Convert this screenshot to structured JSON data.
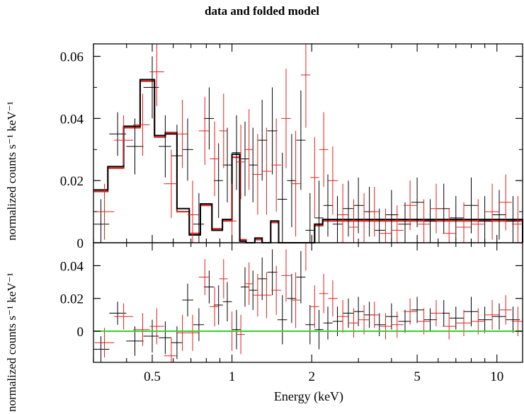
{
  "title": "data and folded model",
  "chart_data": [
    {
      "type": "line",
      "panel": "top",
      "title": "data and folded model",
      "xlabel": "Energy (keV)",
      "ylabel": "normalized counts s⁻¹ keV⁻¹",
      "xscale": "log",
      "xlim": [
        0.3,
        12.5
      ],
      "ylim": [
        0,
        0.064
      ],
      "yticks": [
        0,
        0.02,
        0.04,
        0.06
      ],
      "ytick_labels": [
        "0",
        "0.02",
        "0.04",
        "0.06"
      ],
      "grid": false,
      "legend": "none",
      "series": [
        {
          "color": "#000000",
          "x": [
            0.32,
            0.37,
            0.43,
            0.5,
            0.56,
            0.62,
            0.68,
            0.75,
            0.82,
            0.89,
            0.96,
            1.04,
            1.12,
            1.2,
            1.3,
            1.42,
            1.55,
            1.68,
            1.82,
            1.97,
            2.13,
            2.3,
            2.5,
            2.75,
            3.0,
            3.3,
            3.6,
            4.0,
            4.5,
            5.0,
            5.6,
            6.3,
            7.0,
            8.0,
            9.0,
            10.2,
            11.5
          ],
          "y": [
            0.006,
            0.035,
            0.031,
            0.05,
            0.031,
            0.028,
            0.03,
            0.006,
            0.04,
            0.02,
            0.025,
            0.029,
            0.027,
            0.025,
            0.033,
            0.036,
            0.014,
            0.02,
            0.033,
            0.004,
            0.008,
            0.012,
            0.006,
            0.011,
            0.012,
            0.01,
            0.004,
            0.009,
            0.006,
            0.013,
            0.007,
            0.011,
            0.008,
            0.012,
            0.007,
            0.009,
            0.007
          ],
          "yerr": [
            0.008,
            0.007,
            0.009,
            0.01,
            0.01,
            0.01,
            0.01,
            0.01,
            0.01,
            0.012,
            0.012,
            0.012,
            0.012,
            0.012,
            0.013,
            0.014,
            0.015,
            0.015,
            0.016,
            0.012,
            0.012,
            0.01,
            0.009,
            0.009,
            0.009,
            0.008,
            0.007,
            0.008,
            0.007,
            0.008,
            0.007,
            0.008,
            0.007,
            0.009,
            0.008,
            0.008,
            0.008
          ]
        },
        {
          "color": "#e0201c",
          "x": [
            0.33,
            0.39,
            0.46,
            0.52,
            0.59,
            0.65,
            0.71,
            0.79,
            0.86,
            0.93,
            1.0,
            1.08,
            1.16,
            1.25,
            1.35,
            1.47,
            1.6,
            1.74,
            1.9,
            2.05,
            2.22,
            2.4,
            2.62,
            2.88,
            3.15,
            3.45,
            3.8,
            4.2,
            4.7,
            5.3,
            5.9,
            6.6,
            7.5,
            8.5,
            9.6,
            10.8,
            12.0
          ],
          "y": [
            0.01,
            0.033,
            0.038,
            0.055,
            0.019,
            0.035,
            0.009,
            0.036,
            0.027,
            0.036,
            0.007,
            0.026,
            0.03,
            0.022,
            0.023,
            0.025,
            0.04,
            0.019,
            0.054,
            0.021,
            0.03,
            0.02,
            0.009,
            0.005,
            0.007,
            0.01,
            0.003,
            0.004,
            0.012,
            0.006,
            0.011,
            0.003,
            0.005,
            0.006,
            0.01,
            0.013,
            0.006
          ],
          "yerr": [
            0.009,
            0.008,
            0.01,
            0.011,
            0.011,
            0.011,
            0.011,
            0.011,
            0.012,
            0.012,
            0.012,
            0.012,
            0.013,
            0.013,
            0.014,
            0.015,
            0.016,
            0.017,
            0.017,
            0.013,
            0.012,
            0.011,
            0.01,
            0.009,
            0.009,
            0.008,
            0.008,
            0.008,
            0.008,
            0.008,
            0.008,
            0.008,
            0.008,
            0.008,
            0.009,
            0.009,
            0.009
          ]
        }
      ],
      "model": {
        "edges": [
          0.3,
          0.34,
          0.39,
          0.45,
          0.51,
          0.56,
          0.62,
          0.69,
          0.76,
          0.84,
          0.92,
          1.0,
          1.07,
          1.13,
          1.22,
          1.3,
          1.4,
          1.5,
          1.63,
          1.76,
          1.9,
          2.05,
          2.2,
          12.5
        ],
        "black": [
          0.017,
          0.0245,
          0.0375,
          0.0525,
          0.0345,
          0.035,
          0.011,
          0.0025,
          0.0125,
          0.004,
          0.0075,
          0.0285,
          0.0005,
          0.0,
          0.0015,
          0.0,
          0.007,
          0.0,
          0.0,
          0.0,
          0.0,
          0.006,
          0.0075,
          0.0
        ],
        "red": [
          0.0165,
          0.024,
          0.037,
          0.052,
          0.034,
          0.0355,
          0.01,
          0.003,
          0.012,
          0.0045,
          0.007,
          0.0275,
          0.001,
          0.0,
          0.001,
          0.0,
          0.0065,
          0.0,
          0.0,
          0.0,
          0.0,
          0.0055,
          0.007,
          0.0
        ]
      }
    },
    {
      "type": "line",
      "panel": "bottom",
      "xlabel": "Energy (keV)",
      "ylabel": "normalized counts s⁻¹ keV⁻¹",
      "xscale": "log",
      "xlim": [
        0.3,
        12.5
      ],
      "ylim": [
        -0.019,
        0.054
      ],
      "yticks": [
        0,
        0.02,
        0.04
      ],
      "ytick_labels": [
        "0",
        "0.02",
        "0.04"
      ],
      "xticks": [
        0.5,
        1,
        2,
        5,
        10
      ],
      "xtick_labels": [
        "0.5",
        "1",
        "2",
        "5",
        "10"
      ],
      "baseline": {
        "y": 0,
        "color": "#39d12a"
      },
      "grid": false,
      "legend": "none",
      "series": [
        {
          "color": "#000000",
          "x": [
            0.32,
            0.37,
            0.43,
            0.5,
            0.56,
            0.62,
            0.68,
            0.75,
            0.82,
            0.89,
            0.96,
            1.04,
            1.12,
            1.2,
            1.3,
            1.42,
            1.55,
            1.68,
            1.82,
            1.97,
            2.13,
            2.3,
            2.5,
            2.75,
            3.0,
            3.3,
            3.6,
            4.0,
            4.5,
            5.0,
            5.6,
            6.3,
            7.0,
            8.0,
            9.0,
            10.2,
            11.5
          ],
          "y": [
            -0.011,
            0.011,
            -0.006,
            -0.003,
            -0.004,
            -0.007,
            0.019,
            0.004,
            0.027,
            0.016,
            0.018,
            0.001,
            0.027,
            0.025,
            0.032,
            0.036,
            0.007,
            0.02,
            0.033,
            0.004,
            0.001,
            0.005,
            0.006,
            0.011,
            0.012,
            0.01,
            0.004,
            0.009,
            0.006,
            0.013,
            0.007,
            0.011,
            0.008,
            0.012,
            0.007,
            0.009,
            0.007
          ],
          "yerr": [
            0.008,
            0.007,
            0.009,
            0.01,
            0.01,
            0.01,
            0.01,
            0.01,
            0.01,
            0.012,
            0.012,
            0.012,
            0.012,
            0.012,
            0.013,
            0.014,
            0.015,
            0.015,
            0.016,
            0.012,
            0.012,
            0.01,
            0.009,
            0.009,
            0.009,
            0.008,
            0.007,
            0.008,
            0.007,
            0.008,
            0.007,
            0.008,
            0.007,
            0.009,
            0.008,
            0.008,
            0.008
          ]
        },
        {
          "color": "#e0201c",
          "x": [
            0.33,
            0.39,
            0.46,
            0.52,
            0.59,
            0.65,
            0.71,
            0.79,
            0.86,
            0.93,
            1.0,
            1.08,
            1.16,
            1.25,
            1.35,
            1.47,
            1.6,
            1.74,
            1.9,
            2.05,
            2.22,
            2.4,
            2.62,
            2.88,
            3.15,
            3.45,
            3.8,
            4.2,
            4.7,
            5.3,
            5.9,
            6.6,
            7.5,
            8.5,
            9.6,
            10.8,
            12.0
          ],
          "y": [
            -0.007,
            0.009,
            0.001,
            0.003,
            -0.015,
            -0.001,
            -0.001,
            0.033,
            0.015,
            0.032,
            0.0,
            -0.002,
            0.029,
            0.022,
            0.022,
            0.025,
            0.034,
            0.019,
            0.054,
            0.015,
            0.023,
            0.02,
            0.009,
            0.005,
            0.007,
            0.01,
            0.003,
            0.004,
            0.012,
            0.006,
            0.011,
            0.003,
            0.005,
            0.006,
            0.01,
            0.013,
            0.006
          ],
          "yerr": [
            0.009,
            0.008,
            0.01,
            0.011,
            0.011,
            0.011,
            0.011,
            0.011,
            0.012,
            0.012,
            0.012,
            0.012,
            0.013,
            0.013,
            0.014,
            0.015,
            0.016,
            0.017,
            0.017,
            0.013,
            0.012,
            0.011,
            0.01,
            0.009,
            0.009,
            0.008,
            0.008,
            0.008,
            0.008,
            0.008,
            0.008,
            0.008,
            0.008,
            0.008,
            0.009,
            0.009,
            0.009
          ]
        }
      ]
    }
  ]
}
